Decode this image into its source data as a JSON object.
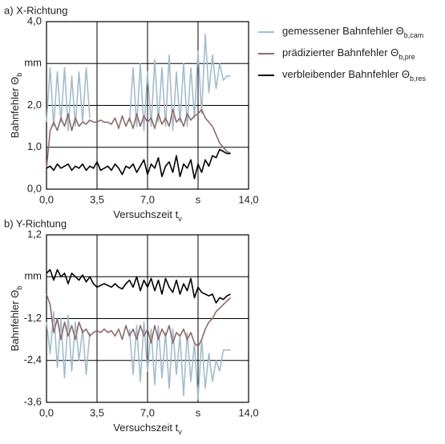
{
  "chart_data": [
    {
      "type": "line",
      "title": "a) X-Richtung",
      "x_label": "Versuchszeit t",
      "x_label_sub": "v",
      "y_label": "Bahnfehler Θ",
      "y_label_sub": "b",
      "grid": true,
      "xlim": [
        0,
        14
      ],
      "xticks": [
        {
          "value": 0,
          "label": "0,0"
        },
        {
          "value": 3.5,
          "label": "3,5"
        },
        {
          "value": 7,
          "label": "7,0"
        },
        {
          "value": 10.5,
          "label": "s"
        },
        {
          "value": 14,
          "label": "14,0"
        }
      ],
      "ylim": [
        0,
        4
      ],
      "yticks": [
        {
          "value": 0,
          "label": "0,0"
        },
        {
          "value": 1,
          "label": "1,0"
        },
        {
          "value": 2,
          "label": "2,0"
        },
        {
          "value": 3,
          "label": "mm"
        },
        {
          "value": 4,
          "label": "4,0"
        }
      ],
      "x": [
        0,
        0.25,
        0.5,
        0.75,
        1,
        1.25,
        1.5,
        1.75,
        2,
        2.25,
        2.5,
        2.75,
        3,
        3.25,
        3.5,
        3.75,
        4,
        4.25,
        4.5,
        4.75,
        5,
        5.25,
        5.5,
        5.75,
        6,
        6.25,
        6.5,
        6.75,
        7,
        7.25,
        7.5,
        7.75,
        8,
        8.25,
        8.5,
        8.75,
        9,
        9.25,
        9.5,
        9.75,
        10,
        10.25,
        10.5,
        10.75,
        11,
        11.25,
        11.5,
        11.75,
        12,
        12.25,
        12.5,
        12.75
      ],
      "series": [
        {
          "name": "gemessener Bahnfehler Θ",
          "name_sub": "b,cam",
          "color": "#a3bccb",
          "values": [
            1.6,
            2.9,
            1.5,
            2.8,
            1.6,
            2.9,
            1.4,
            2.7,
            1.5,
            2.8,
            1.6,
            2.9,
            1.7,
            null,
            null,
            null,
            null,
            null,
            null,
            null,
            null,
            null,
            null,
            1.6,
            2.9,
            1.5,
            3.0,
            1.4,
            2.8,
            1.5,
            3.1,
            1.6,
            2.9,
            1.5,
            3.2,
            1.4,
            2.8,
            1.6,
            3.0,
            1.5,
            2.9,
            1.7,
            3.3,
            1.8,
            3.7,
            2.3,
            3.2,
            2.4,
            3.0,
            2.6,
            2.7,
            2.7
          ]
        },
        {
          "name": "prädizierter Bahnfehler Θ",
          "name_sub": "b,pre",
          "color": "#8c6b6b",
          "values": [
            0.5,
            1.4,
            1.6,
            1.4,
            1.7,
            1.5,
            1.8,
            1.4,
            1.7,
            1.5,
            1.6,
            1.55,
            1.65,
            1.6,
            1.6,
            1.65,
            1.6,
            1.6,
            1.55,
            1.7,
            1.45,
            1.75,
            1.5,
            1.7,
            1.45,
            1.8,
            1.5,
            1.75,
            1.6,
            1.7,
            1.45,
            1.8,
            1.55,
            1.7,
            1.5,
            1.9,
            1.6,
            1.7,
            1.5,
            1.8,
            1.65,
            1.75,
            1.8,
            1.9,
            1.7,
            1.6,
            1.5,
            1.3,
            1.1,
            1.0,
            0.9,
            0.85
          ]
        },
        {
          "name": "verbleibender Bahnfehler Θ",
          "name_sub": "b,res",
          "color": "#000000",
          "values": [
            0.5,
            0.55,
            0.45,
            0.6,
            0.5,
            0.55,
            0.6,
            0.45,
            0.55,
            0.5,
            0.6,
            0.45,
            0.55,
            0.5,
            0.65,
            0.45,
            0.5,
            0.55,
            0.45,
            0.6,
            0.5,
            0.35,
            0.55,
            0.5,
            0.6,
            0.4,
            0.55,
            0.7,
            0.35,
            0.6,
            0.5,
            0.75,
            0.3,
            0.55,
            0.65,
            0.4,
            0.8,
            0.3,
            0.6,
            0.5,
            0.7,
            0.25,
            0.6,
            0.4,
            0.7,
            0.55,
            0.8,
            0.75,
            0.95,
            0.9,
            0.85,
            0.85
          ]
        }
      ]
    },
    {
      "type": "line",
      "title": "b) Y-Richtung",
      "x_label": "Versuchszeit t",
      "x_label_sub": "v",
      "y_label": "Bahnfehler Θ",
      "y_label_sub": "b",
      "grid": true,
      "xlim": [
        0,
        14
      ],
      "xticks": [
        {
          "value": 0,
          "label": "0,0"
        },
        {
          "value": 3.5,
          "label": "3,5"
        },
        {
          "value": 7,
          "label": "7,0"
        },
        {
          "value": 10.5,
          "label": "s"
        },
        {
          "value": 14,
          "label": "14,0"
        }
      ],
      "ylim": [
        -3.6,
        1.2
      ],
      "yticks": [
        {
          "value": -3.6,
          "label": "-3,6"
        },
        {
          "value": -2.4,
          "label": "-2,4"
        },
        {
          "value": -1.2,
          "label": "-1,2"
        },
        {
          "value": 0,
          "label": "mm"
        },
        {
          "value": 1.2,
          "label": "1,2"
        }
      ],
      "x": [
        0,
        0.25,
        0.5,
        0.75,
        1,
        1.25,
        1.5,
        1.75,
        2,
        2.25,
        2.5,
        2.75,
        3,
        3.25,
        3.5,
        3.75,
        4,
        4.25,
        4.5,
        4.75,
        5,
        5.25,
        5.5,
        5.75,
        6,
        6.25,
        6.5,
        6.75,
        7,
        7.25,
        7.5,
        7.75,
        8,
        8.25,
        8.5,
        8.75,
        9,
        9.25,
        9.5,
        9.75,
        10,
        10.25,
        10.5,
        10.75,
        11,
        11.25,
        11.5,
        11.75,
        12,
        12.25,
        12.5,
        12.75
      ],
      "series": [
        {
          "color": "#a3bccb",
          "values": [
            -1.3,
            -2.2,
            -1.0,
            -2.6,
            -1.2,
            -2.9,
            -1.1,
            -2.7,
            -1.3,
            -2.4,
            -1.5,
            -2.8,
            -1.6,
            null,
            null,
            null,
            null,
            null,
            null,
            null,
            null,
            null,
            null,
            -1.5,
            -2.8,
            -1.4,
            -3.0,
            -1.3,
            -2.7,
            -1.5,
            -3.1,
            -1.4,
            -2.9,
            -1.6,
            -3.2,
            -1.5,
            -2.8,
            -1.7,
            -3.4,
            -1.6,
            -3.0,
            -1.9,
            -3.5,
            -1.8,
            -3.2,
            -2.2,
            -3.0,
            -2.4,
            -2.7,
            -2.1,
            -2.1,
            -2.1
          ]
        },
        {
          "color": "#8c6b6b",
          "values": [
            -0.5,
            -0.8,
            -1.6,
            -1.2,
            -1.8,
            -1.3,
            -1.7,
            -1.4,
            -1.8,
            -1.3,
            -1.6,
            -1.5,
            -1.7,
            -1.6,
            -1.55,
            -1.6,
            -1.5,
            -1.6,
            -1.55,
            -1.7,
            -1.5,
            -1.8,
            -1.4,
            -1.7,
            -1.5,
            -1.8,
            -1.4,
            -1.7,
            -1.5,
            -1.9,
            -1.4,
            -1.8,
            -1.5,
            -1.7,
            -1.4,
            -1.9,
            -1.6,
            -1.7,
            -1.5,
            -1.8,
            -1.6,
            -1.9,
            -2.0,
            -1.8,
            -1.5,
            -1.3,
            -1.2,
            -1.0,
            -0.9,
            -0.8,
            -0.7,
            -0.6
          ]
        },
        {
          "color": "#000000",
          "values": [
            0.1,
            0.2,
            -0.1,
            0.2,
            0.0,
            0.1,
            -0.2,
            0.1,
            0.0,
            -0.1,
            0.05,
            -0.15,
            0.0,
            -0.2,
            -0.3,
            -0.25,
            -0.2,
            -0.25,
            -0.3,
            -0.2,
            -0.3,
            -0.35,
            -0.2,
            -0.1,
            -0.3,
            0.0,
            -0.4,
            -0.1,
            -0.3,
            -0.05,
            -0.4,
            -0.1,
            -0.5,
            -0.05,
            -0.3,
            -0.45,
            -0.1,
            -0.5,
            -0.2,
            -0.4,
            -0.05,
            -0.6,
            -0.3,
            -0.45,
            -0.5,
            -0.55,
            -0.5,
            -0.75,
            -0.6,
            -0.65,
            -0.55,
            -0.5
          ]
        }
      ]
    }
  ]
}
